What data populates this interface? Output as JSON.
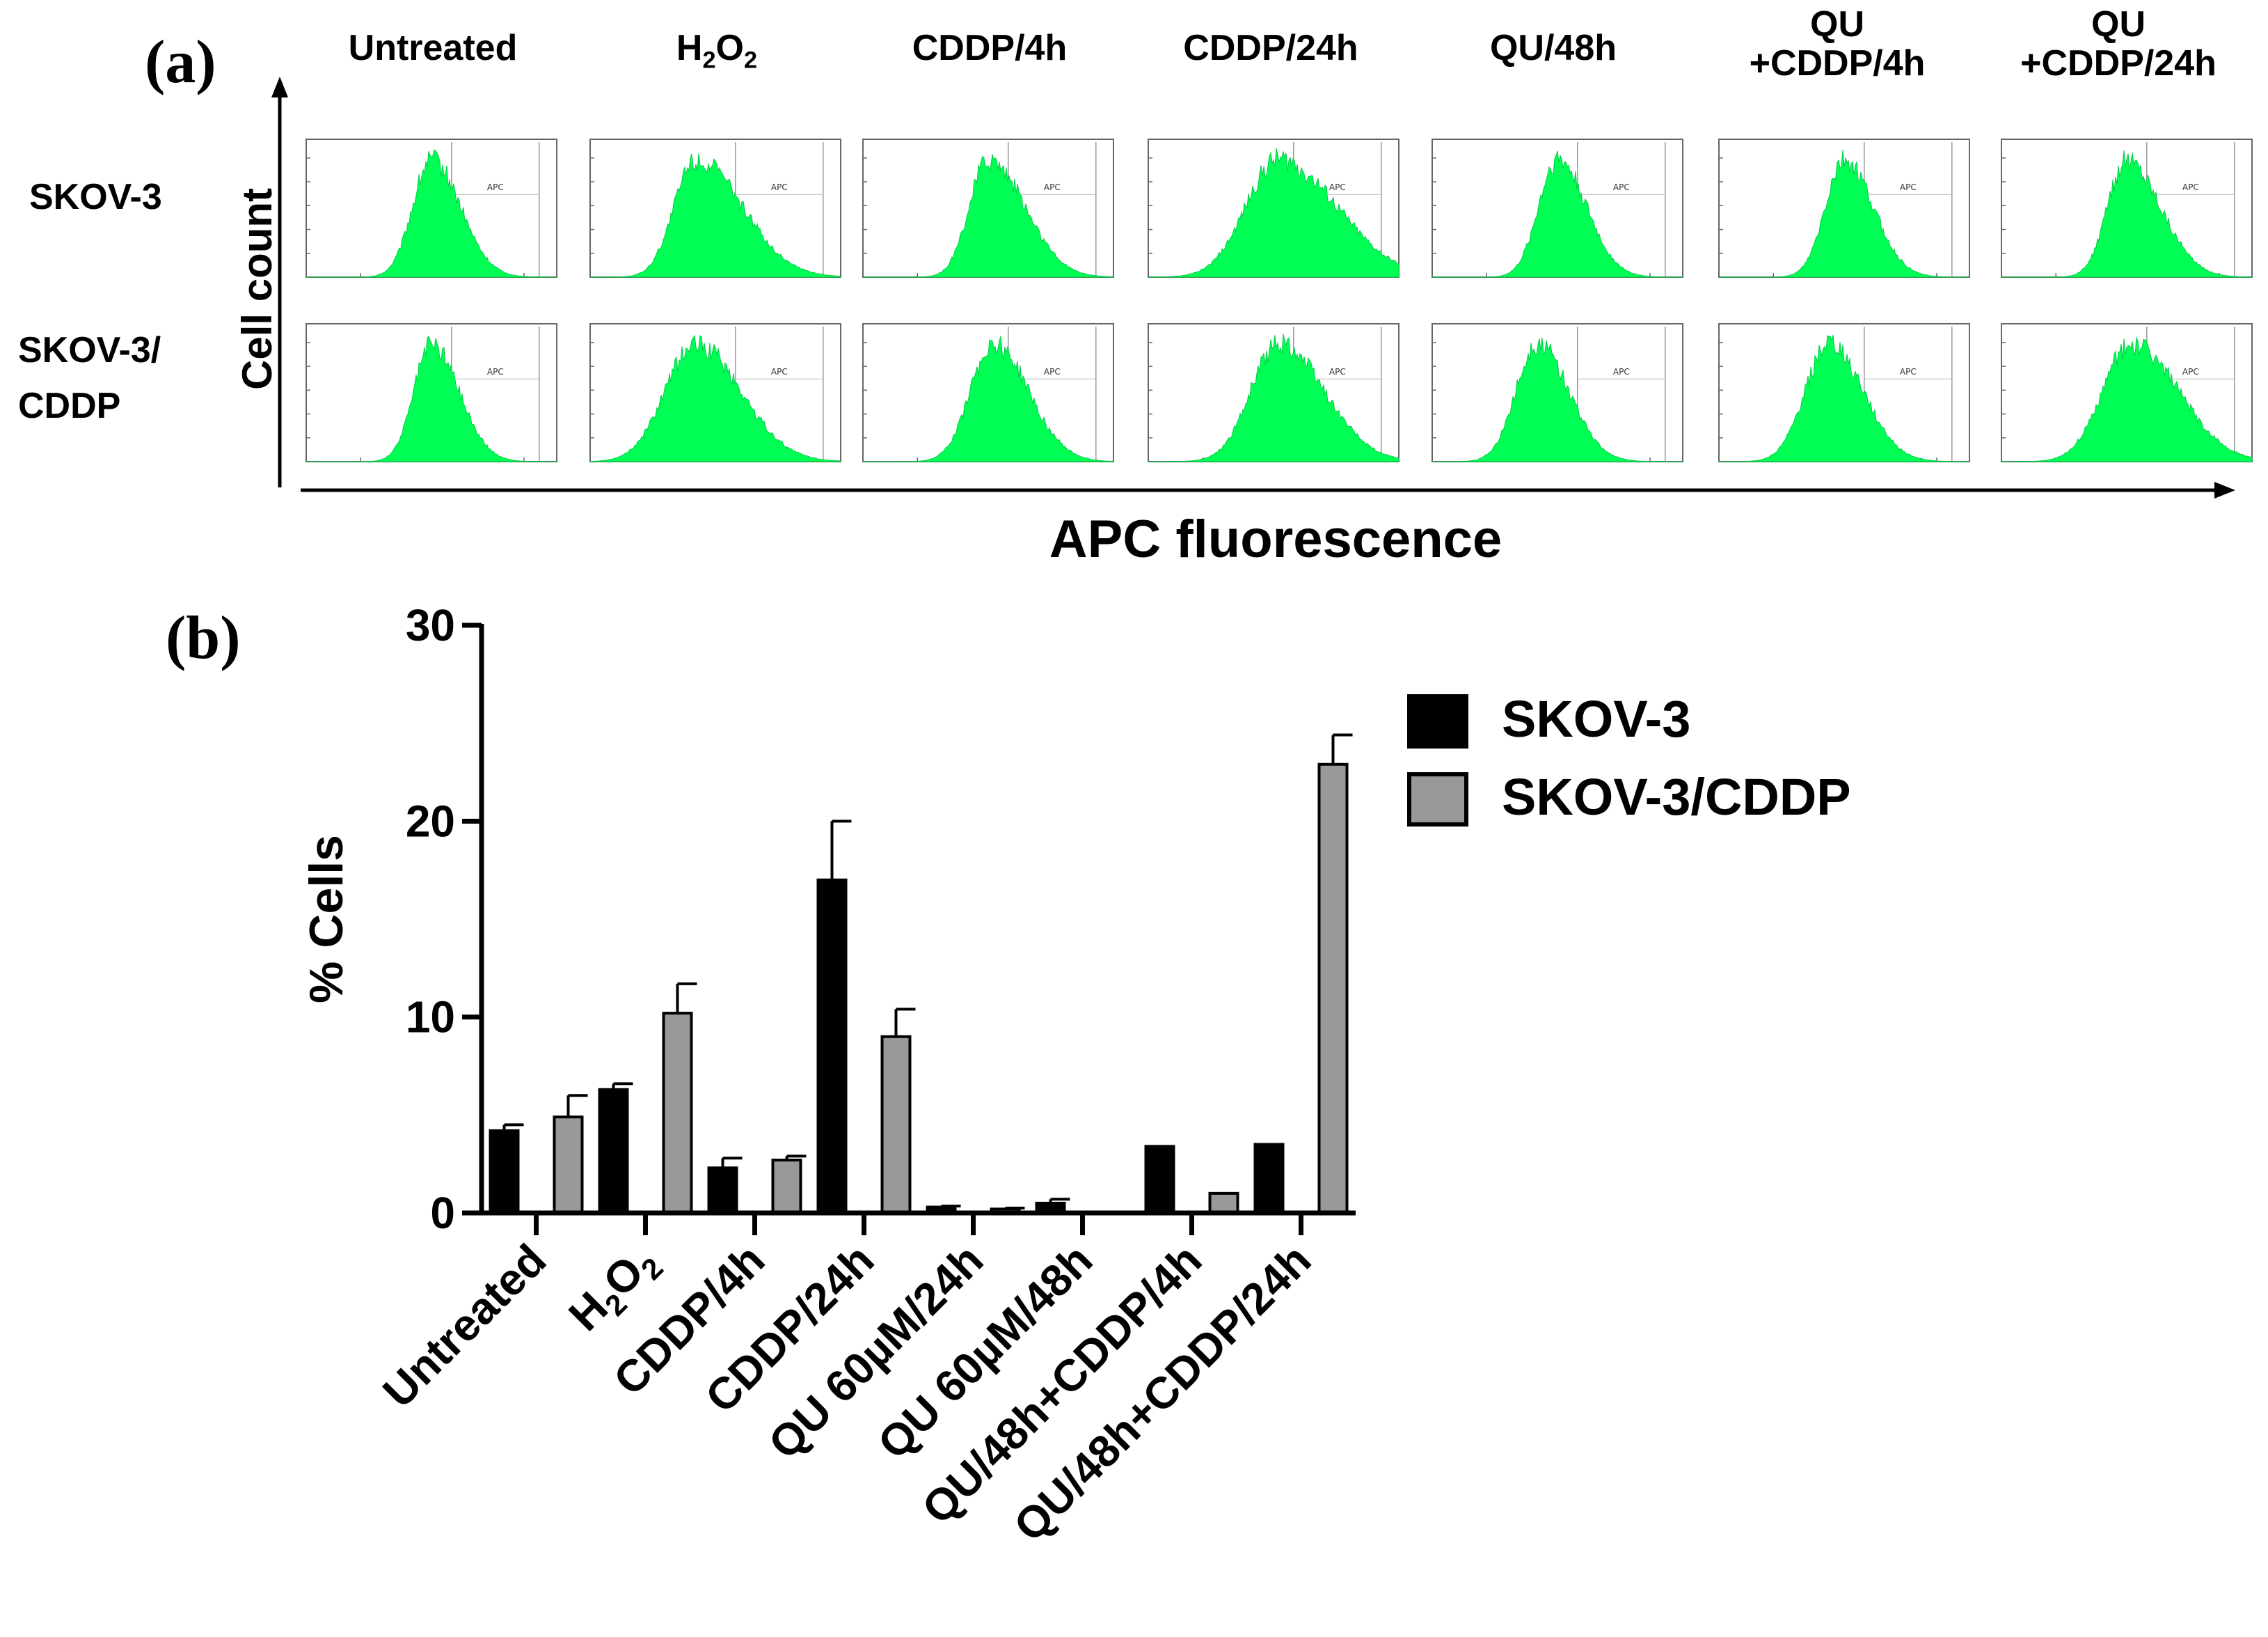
{
  "panel_a": {
    "label": "(a)",
    "columns": [
      [
        "Untreated"
      ],
      [
        "H2O2"
      ],
      [
        "CDDP/4h"
      ],
      [
        "CDDP/24h"
      ],
      [
        "QU/48h"
      ],
      [
        "QU",
        "+CDDP/4h"
      ],
      [
        "QU",
        "+CDDP/24h"
      ]
    ],
    "h2o2": {
      "h": "H",
      "sub1": "2",
      "o": "O",
      "sub2": "2"
    },
    "rows": [
      [
        "SKOV-3"
      ],
      [
        "SKOV-3/",
        "CDDP"
      ]
    ],
    "y_axis_label": "Cell count",
    "x_axis_label": "APC fluorescence",
    "gate_label": "APC",
    "histogram_color": "#00ff55",
    "histograms": [
      [
        {
          "peak": 0.5,
          "width": 0.075,
          "skew": 0.04
        },
        {
          "peak": 0.42,
          "width": 0.085,
          "skew": 0.1
        },
        {
          "peak": 0.5,
          "width": 0.075,
          "skew": 0.07
        },
        {
          "peak": 0.52,
          "width": 0.13,
          "skew": 0.1
        },
        {
          "peak": 0.5,
          "width": 0.075,
          "skew": 0.04
        },
        {
          "peak": 0.5,
          "width": 0.075,
          "skew": 0.04
        },
        {
          "peak": 0.5,
          "width": 0.075,
          "skew": 0.06
        }
      ],
      [
        {
          "peak": 0.5,
          "width": 0.07,
          "skew": 0.04
        },
        {
          "peak": 0.42,
          "width": 0.12,
          "skew": 0.06
        },
        {
          "peak": 0.52,
          "width": 0.09,
          "skew": 0.05
        },
        {
          "peak": 0.52,
          "width": 0.11,
          "skew": 0.07
        },
        {
          "peak": 0.42,
          "width": 0.085,
          "skew": 0.04
        },
        {
          "peak": 0.44,
          "width": 0.095,
          "skew": 0.04
        },
        {
          "peak": 0.52,
          "width": 0.115,
          "skew": 0.07
        }
      ]
    ]
  },
  "chart_data": {
    "type": "bar",
    "panel_label": "(b)",
    "title": "",
    "xlabel": "",
    "ylabel": "% Cells",
    "ylim": [
      0,
      30
    ],
    "yticks": [
      0,
      10,
      20,
      30
    ],
    "categories": [
      "Untreated",
      "H2O2",
      "CDDP/4h",
      "CDDP/24h",
      "QU 60µM/24h",
      "QU 60µM/48h",
      "QU/48h+CDDP/4h",
      "QU/48h+CDDP/24h"
    ],
    "h2o2": {
      "h": "H",
      "sub1": "2",
      "o": "O",
      "sub2": "2"
    },
    "series": [
      {
        "name": "SKOV-3",
        "color": "#000000",
        "values": [
          4.2,
          6.3,
          2.3,
          17.0,
          0.3,
          0.5,
          3.4,
          3.5
        ],
        "errors": [
          0.3,
          0.3,
          0.5,
          3.0,
          0.05,
          0.2,
          0,
          0
        ]
      },
      {
        "name": "SKOV-3/CDDP",
        "color": "#999999",
        "values": [
          4.9,
          10.2,
          2.7,
          9.0,
          0.2,
          0.0,
          1.0,
          22.9
        ],
        "errors": [
          1.1,
          1.5,
          0.2,
          1.4,
          0.05,
          0,
          0,
          1.5
        ]
      }
    ],
    "legend_position": "top-right"
  }
}
